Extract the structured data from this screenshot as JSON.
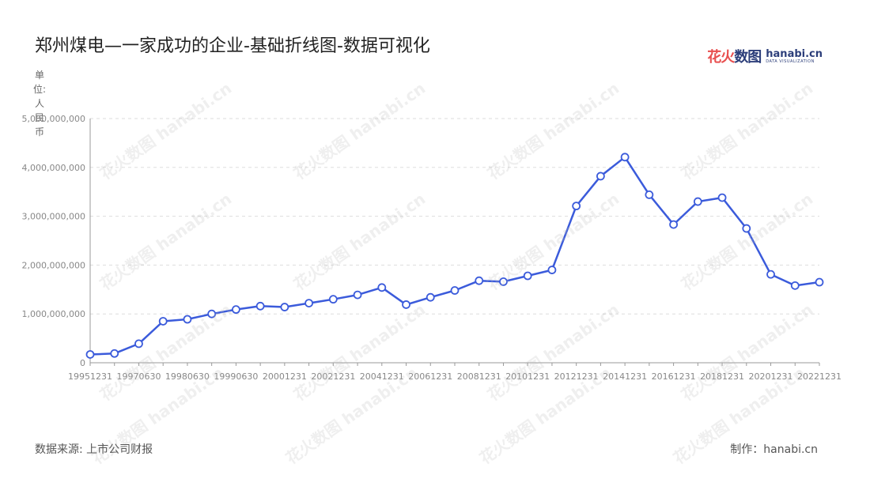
{
  "title": "郑州煤电—一家成功的企业-基础折线图-数据可视化",
  "logo": {
    "cn_part1": "花火",
    "cn_part2": "数图",
    "en_name": "hanabi.cn",
    "en_sub": "DATA VISUALIZATION"
  },
  "unit_label": "单位:人民币",
  "source": "数据来源: 上市公司财报",
  "credit": "制作：hanabi.cn",
  "watermark_text": "花火数图 hanabi.cn",
  "colors": {
    "line": "#3b5bdb",
    "grid": "#dddddd",
    "axis": "#999999",
    "marker_fill": "#ffffff"
  },
  "chart_data": {
    "type": "line",
    "title": "郑州煤电—一家成功的企业-基础折线图-数据可视化",
    "ylabel": "单位:人民币",
    "ylim": [
      0,
      5000000000
    ],
    "yticks": [
      0,
      1000000000,
      2000000000,
      3000000000,
      4000000000,
      5000000000
    ],
    "ytick_labels": [
      "0",
      "1,000,000,000",
      "2,000,000,000",
      "3,000,000,000",
      "4,000,000,000",
      "5,000,000,000"
    ],
    "grid": true,
    "categories": [
      "19951231",
      "19961231",
      "19970630",
      "19971231",
      "19980630",
      "19981231",
      "19990630",
      "19991231",
      "20001231",
      "20011231",
      "20021231",
      "20031231",
      "20041231",
      "20051231",
      "20061231",
      "20071231",
      "20081231",
      "20091231",
      "20101231",
      "20111231",
      "20121231",
      "20131231",
      "20141231",
      "20151231",
      "20161231",
      "20171231",
      "20181231",
      "20191231",
      "20201231",
      "20211231",
      "20221231"
    ],
    "xtick_labels": [
      "19951231",
      "19970630",
      "19980630",
      "19990630",
      "20001231",
      "20021231",
      "20041231",
      "20061231",
      "20081231",
      "20101231",
      "20121231",
      "20141231",
      "20161231",
      "20181231",
      "20201231",
      "20221231"
    ],
    "series": [
      {
        "values": [
          170000000,
          190000000,
          390000000,
          850000000,
          890000000,
          1000000000,
          1090000000,
          1160000000,
          1140000000,
          1220000000,
          1300000000,
          1390000000,
          1540000000,
          1190000000,
          1340000000,
          1480000000,
          1680000000,
          1660000000,
          1780000000,
          1900000000,
          3210000000,
          3820000000,
          4210000000,
          3440000000,
          2830000000,
          3300000000,
          3380000000,
          2750000000,
          1810000000,
          1580000000,
          1650000000
        ]
      }
    ]
  }
}
